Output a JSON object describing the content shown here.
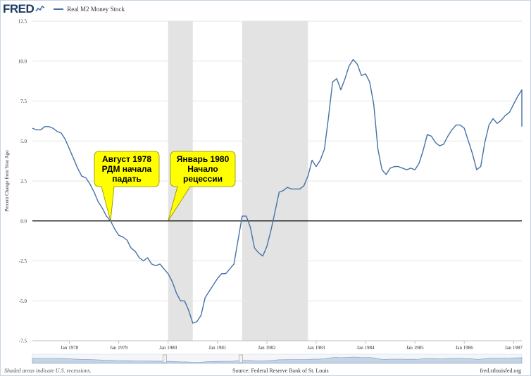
{
  "header": {
    "logo_text": "FRED",
    "logo_icon": "fred-chart-icon",
    "legend_label": "Real M2 Money Stock",
    "series_color": "#4572a7"
  },
  "footer": {
    "note": "Shaded areas indicate U.S. recessions.",
    "source": "Source: Federal Reserve Bank of St. Louis",
    "site": "fred.stlouisfed.org"
  },
  "colors": {
    "recession": "#e3e3e3",
    "grid": "#e6e6e6",
    "zero_line": "#000000",
    "callout_fill": "#ffff00",
    "navigator_fill": "#bccde3"
  },
  "chart_data": {
    "type": "line",
    "ylabel": "Percent Change from Year Ago",
    "ylim": [
      -7.5,
      12.5
    ],
    "y_ticks": [
      "12.5",
      "10.0",
      "7.5",
      "5.0",
      "2.5",
      "0.0",
      "-2.5",
      "-5.0",
      "-7.5"
    ],
    "x_range": [
      "1977-04",
      "1987-03"
    ],
    "x_ticks": [
      "Jan 1978",
      "Jan 1979",
      "Jan 1980",
      "Jan 1981",
      "Jan 1982",
      "Jan 1983",
      "Jan 1984",
      "Jan 1985",
      "Jan 1986",
      "Jan 1987"
    ],
    "recessions": [
      {
        "start": "1980-01",
        "end": "1980-07"
      },
      {
        "start": "1981-07",
        "end": "1982-11"
      }
    ],
    "grid": "horizontal",
    "series": [
      {
        "name": "Real M2 Money Stock",
        "points": [
          [
            "1977-04",
            5.8
          ],
          [
            "1977-05",
            5.7
          ],
          [
            "1977-06",
            5.7
          ],
          [
            "1977-07",
            5.9
          ],
          [
            "1977-08",
            5.9
          ],
          [
            "1977-09",
            5.8
          ],
          [
            "1977-10",
            5.6
          ],
          [
            "1977-11",
            5.5
          ],
          [
            "1977-12",
            5.1
          ],
          [
            "1978-01",
            4.5
          ],
          [
            "1978-02",
            3.9
          ],
          [
            "1978-03",
            3.3
          ],
          [
            "1978-04",
            2.8
          ],
          [
            "1978-05",
            2.7
          ],
          [
            "1978-06",
            2.3
          ],
          [
            "1978-07",
            1.8
          ],
          [
            "1978-08",
            1.2
          ],
          [
            "1978-09",
            0.8
          ],
          [
            "1978-10",
            0.3
          ],
          [
            "1978-11",
            0.0
          ],
          [
            "1978-12",
            -0.5
          ],
          [
            "1979-01",
            -0.9
          ],
          [
            "1979-02",
            -1.0
          ],
          [
            "1979-03",
            -1.2
          ],
          [
            "1979-04",
            -1.7
          ],
          [
            "1979-05",
            -1.9
          ],
          [
            "1979-06",
            -2.3
          ],
          [
            "1979-07",
            -2.5
          ],
          [
            "1979-08",
            -2.3
          ],
          [
            "1979-09",
            -2.7
          ],
          [
            "1979-10",
            -2.8
          ],
          [
            "1979-11",
            -2.7
          ],
          [
            "1979-12",
            -3.0
          ],
          [
            "1980-01",
            -3.3
          ],
          [
            "1980-02",
            -3.8
          ],
          [
            "1980-03",
            -4.5
          ],
          [
            "1980-04",
            -5.0
          ],
          [
            "1980-05",
            -5.0
          ],
          [
            "1980-06",
            -5.6
          ],
          [
            "1980-07",
            -6.4
          ],
          [
            "1980-08",
            -6.3
          ],
          [
            "1980-09",
            -5.9
          ],
          [
            "1980-10",
            -4.8
          ],
          [
            "1980-11",
            -4.4
          ],
          [
            "1980-12",
            -4.0
          ],
          [
            "1981-01",
            -3.6
          ],
          [
            "1981-02",
            -3.3
          ],
          [
            "1981-03",
            -3.3
          ],
          [
            "1981-04",
            -3.0
          ],
          [
            "1981-05",
            -2.7
          ],
          [
            "1981-06",
            -1.2
          ],
          [
            "1981-07",
            0.3
          ],
          [
            "1981-08",
            0.3
          ],
          [
            "1981-09",
            -0.4
          ],
          [
            "1981-10",
            -1.7
          ],
          [
            "1981-11",
            -2.0
          ],
          [
            "1981-12",
            -2.2
          ],
          [
            "1982-01",
            -1.6
          ],
          [
            "1982-02",
            -0.6
          ],
          [
            "1982-03",
            0.6
          ],
          [
            "1982-04",
            1.8
          ],
          [
            "1982-05",
            1.9
          ],
          [
            "1982-06",
            2.1
          ],
          [
            "1982-07",
            2.0
          ],
          [
            "1982-08",
            2.0
          ],
          [
            "1982-09",
            2.0
          ],
          [
            "1982-10",
            2.2
          ],
          [
            "1982-11",
            2.8
          ],
          [
            "1982-12",
            3.8
          ],
          [
            "1983-01",
            3.4
          ],
          [
            "1983-02",
            3.8
          ],
          [
            "1983-03",
            4.5
          ],
          [
            "1983-04",
            6.5
          ],
          [
            "1983-05",
            8.7
          ],
          [
            "1983-06",
            8.9
          ],
          [
            "1983-07",
            8.2
          ],
          [
            "1983-08",
            8.9
          ],
          [
            "1983-09",
            9.7
          ],
          [
            "1983-10",
            10.1
          ],
          [
            "1983-11",
            9.8
          ],
          [
            "1983-12",
            9.1
          ],
          [
            "1984-01",
            9.2
          ],
          [
            "1984-02",
            8.7
          ],
          [
            "1984-03",
            7.3
          ],
          [
            "1984-04",
            4.5
          ],
          [
            "1984-05",
            3.2
          ],
          [
            "1984-06",
            2.9
          ],
          [
            "1984-07",
            3.3
          ],
          [
            "1984-08",
            3.4
          ],
          [
            "1984-09",
            3.4
          ],
          [
            "1984-10",
            3.3
          ],
          [
            "1984-11",
            3.2
          ],
          [
            "1984-12",
            3.3
          ],
          [
            "1985-01",
            3.2
          ],
          [
            "1985-02",
            3.6
          ],
          [
            "1985-03",
            4.4
          ],
          [
            "1985-04",
            5.4
          ],
          [
            "1985-05",
            5.3
          ],
          [
            "1985-06",
            4.9
          ],
          [
            "1985-07",
            4.7
          ],
          [
            "1985-08",
            4.8
          ],
          [
            "1985-09",
            5.3
          ],
          [
            "1985-10",
            5.7
          ],
          [
            "1985-11",
            6.0
          ],
          [
            "1985-12",
            6.0
          ],
          [
            "1986-01",
            5.8
          ],
          [
            "1986-02",
            5.0
          ],
          [
            "1986-03",
            4.2
          ],
          [
            "1986-04",
            3.2
          ],
          [
            "1986-05",
            3.4
          ],
          [
            "1986-06",
            4.9
          ],
          [
            "1986-07",
            6.0
          ],
          [
            "1986-08",
            6.4
          ],
          [
            "1986-09",
            6.1
          ],
          [
            "1986-10",
            6.3
          ],
          [
            "1986-11",
            6.6
          ],
          [
            "1986-12",
            6.8
          ],
          [
            "1987-01",
            7.3
          ],
          [
            "1987-02",
            7.8
          ],
          [
            "1987-03",
            8.2
          ],
          [
            "1987-04",
            8.2
          ],
          [
            "1987-05",
            7.3
          ],
          [
            "1987-06",
            5.9
          ]
        ]
      }
    ],
    "annotations": [
      {
        "date": "1978-11",
        "value": 0.0,
        "lines": [
          "Август 1978",
          "РДМ начала",
          "падать"
        ]
      },
      {
        "date": "1980-01",
        "value": 0.0,
        "lines": [
          "Январь 1980",
          "Начало",
          "рецессии"
        ]
      }
    ]
  }
}
